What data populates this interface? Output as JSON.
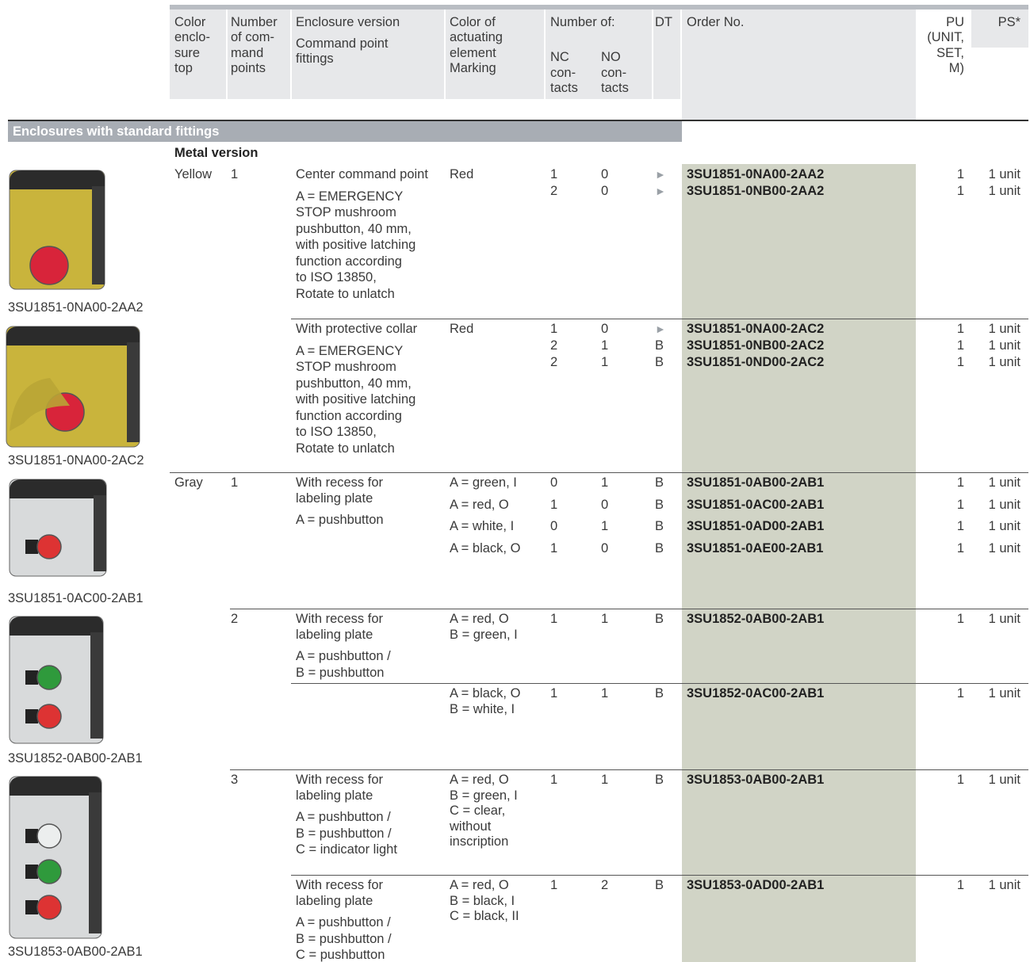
{
  "header": {
    "color": [
      "Color",
      "enclo-",
      "sure",
      "top"
    ],
    "points": [
      "Number",
      "of com-",
      "mand",
      "points"
    ],
    "enclosure": [
      "Enclosure version",
      "Command point",
      "fittings"
    ],
    "actuator": [
      "Color of",
      "actuating",
      "element",
      "Marking"
    ],
    "number_of": "Number of:",
    "nc": [
      "NC",
      "con-",
      "tacts"
    ],
    "no": [
      "NO",
      "con-",
      "tacts"
    ],
    "dt": "DT",
    "order": "Order No.",
    "pu": [
      "PU",
      "(UNIT,",
      "SET,",
      "M)"
    ],
    "ps": "PS*"
  },
  "section": "Enclosures with standard fittings",
  "subsection": "Metal version",
  "blocks": [
    {
      "color": "Yellow",
      "points": 1,
      "version": [
        "Center command point"
      ],
      "fittings": [
        "A = EMERGENCY",
        "STOP mushroom",
        "pushbutton, 40 mm,",
        "with positive latching",
        "function according",
        "to ISO 13850,",
        "Rotate to unlatch"
      ],
      "actuator": [
        "Red"
      ],
      "rows": [
        {
          "nc": 1,
          "no": 0,
          "dt": "►",
          "order": "3SU1851-0NA00-2AA2",
          "pu": 1,
          "ps": "1 unit"
        },
        {
          "nc": 2,
          "no": 0,
          "dt": "►",
          "order": "3SU1851-0NB00-2AA2",
          "pu": 1,
          "ps": "1 unit"
        }
      ]
    },
    {
      "version": [
        "With protective collar"
      ],
      "fittings": [
        "A = EMERGENCY",
        "STOP mushroom",
        "pushbutton, 40 mm,",
        "with positive latching",
        "function according",
        "to ISO 13850,",
        "Rotate to unlatch"
      ],
      "actuator": [
        "Red"
      ],
      "rows": [
        {
          "nc": 1,
          "no": 0,
          "dt": "►",
          "order": "3SU1851-0NA00-2AC2",
          "pu": 1,
          "ps": "1 unit"
        },
        {
          "nc": 2,
          "no": 1,
          "dt": "B",
          "order": "3SU1851-0NB00-2AC2",
          "pu": 1,
          "ps": "1 unit"
        },
        {
          "nc": 2,
          "no": 1,
          "dt": "B",
          "order": "3SU1851-0ND00-2AC2",
          "pu": 1,
          "ps": "1 unit"
        }
      ]
    },
    {
      "color": "Gray",
      "points": 1,
      "version": [
        "With recess for",
        "labeling plate"
      ],
      "fittings": [
        "A = pushbutton"
      ],
      "rows": [
        {
          "actuator": [
            "A = green, I"
          ],
          "nc": 0,
          "no": 1,
          "dt": "B",
          "order": "3SU1851-0AB00-2AB1",
          "pu": 1,
          "ps": "1 unit"
        },
        {
          "actuator": [
            "A = red, O"
          ],
          "nc": 1,
          "no": 0,
          "dt": "B",
          "order": "3SU1851-0AC00-2AB1",
          "pu": 1,
          "ps": "1 unit"
        },
        {
          "actuator": [
            "A = white, I"
          ],
          "nc": 0,
          "no": 1,
          "dt": "B",
          "order": "3SU1851-0AD00-2AB1",
          "pu": 1,
          "ps": "1 unit"
        },
        {
          "actuator": [
            "A = black, O"
          ],
          "nc": 1,
          "no": 0,
          "dt": "B",
          "order": "3SU1851-0AE00-2AB1",
          "pu": 1,
          "ps": "1 unit"
        }
      ]
    },
    {
      "points": 2,
      "version": [
        "With recess for",
        "labeling plate"
      ],
      "fittings": [
        "A = pushbutton /",
        "B = pushbutton"
      ],
      "rows": [
        {
          "actuator": [
            "A = red, O",
            "B = green, I"
          ],
          "nc": 1,
          "no": 1,
          "dt": "B",
          "order": "3SU1852-0AB00-2AB1",
          "pu": 1,
          "ps": "1 unit"
        }
      ]
    },
    {
      "rows": [
        {
          "actuator": [
            "A = black, O",
            "B = white, I"
          ],
          "nc": 1,
          "no": 1,
          "dt": "B",
          "order": "3SU1852-0AC00-2AB1",
          "pu": 1,
          "ps": "1 unit"
        }
      ]
    },
    {
      "points": 3,
      "version": [
        "With recess for",
        "labeling plate"
      ],
      "fittings": [
        "A = pushbutton /",
        "B = pushbutton /",
        "C = indicator light"
      ],
      "rows": [
        {
          "actuator": [
            "A = red, O",
            "B = green, I",
            "C = clear,",
            "without",
            "inscription"
          ],
          "nc": 1,
          "no": 1,
          "dt": "B",
          "order": "3SU1853-0AB00-2AB1",
          "pu": 1,
          "ps": "1 unit"
        }
      ]
    },
    {
      "version": [
        "With recess for",
        "labeling plate"
      ],
      "fittings": [
        "A = pushbutton /",
        "B = pushbutton /",
        "C = pushbutton"
      ],
      "rows": [
        {
          "actuator": [
            "A = red, O",
            "B = black, I",
            "C = black, II"
          ],
          "nc": 1,
          "no": 2,
          "dt": "B",
          "order": "3SU1853-0AD00-2AB1",
          "pu": 1,
          "ps": "1 unit"
        }
      ]
    }
  ],
  "images": [
    {
      "caption": "3SU1851-0NA00-2AA2"
    },
    {
      "caption": "3SU1851-0NA00-2AC2"
    },
    {
      "caption": "3SU1851-0AC00-2AB1"
    },
    {
      "caption": "3SU1852-0AB00-2AB1"
    },
    {
      "caption": "3SU1853-0AB00-2AB1"
    }
  ]
}
